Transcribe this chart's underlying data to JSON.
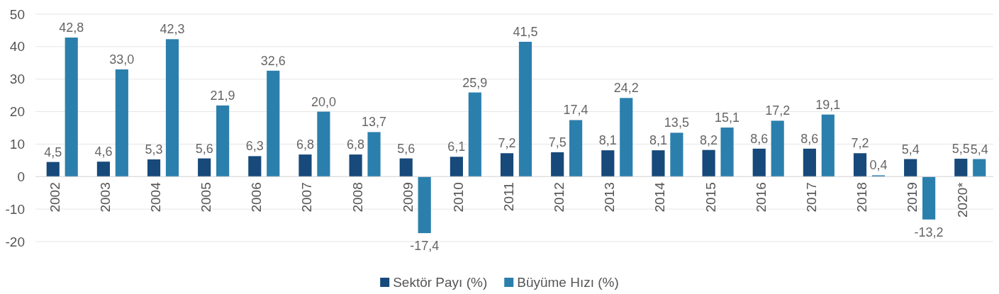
{
  "chart_data": {
    "type": "bar",
    "categories": [
      "2002",
      "2003",
      "2004",
      "2005",
      "2006",
      "2007",
      "2008",
      "2009",
      "2010",
      "2011",
      "2012",
      "2013",
      "2014",
      "2015",
      "2016",
      "2017",
      "2018",
      "2019",
      "2020*"
    ],
    "series": [
      {
        "name": "Sektör Payı (%)",
        "color": "#17497a",
        "values": [
          4.5,
          4.6,
          5.3,
          5.6,
          6.3,
          6.8,
          6.8,
          5.6,
          6.1,
          7.2,
          7.5,
          8.1,
          8.1,
          8.2,
          8.6,
          8.6,
          7.2,
          5.4,
          5.5
        ],
        "value_labels": [
          "4,5",
          "4,6",
          "5,3",
          "5,6",
          "6,3",
          "6,8",
          "6,8",
          "5,6",
          "6,1",
          "7,2",
          "7,5",
          "8,1",
          "8,1",
          "8,2",
          "8,6",
          "8,6",
          "7,2",
          "5,4",
          "5,5"
        ]
      },
      {
        "name": "Büyüme Hızı (%)",
        "color": "#2b7fad",
        "values": [
          42.8,
          33.0,
          42.3,
          21.9,
          32.6,
          20.0,
          13.7,
          -17.4,
          25.9,
          41.5,
          17.4,
          24.2,
          13.5,
          15.1,
          17.2,
          19.1,
          0.4,
          -13.2,
          5.4
        ],
        "value_labels": [
          "42,8",
          "33,0",
          "42,3",
          "21,9",
          "32,6",
          "20,0",
          "13,7",
          "-17,4",
          "25,9",
          "41,5",
          "17,4",
          "24,2",
          "13,5",
          "15,1",
          "17,2",
          "19,1",
          "0,4",
          "-13,2",
          "5,4"
        ]
      }
    ],
    "ylim": [
      -20,
      50
    ],
    "yticks": [
      -20,
      -10,
      0,
      10,
      20,
      30,
      40,
      50
    ],
    "grid": "y",
    "legend": "bottom"
  }
}
